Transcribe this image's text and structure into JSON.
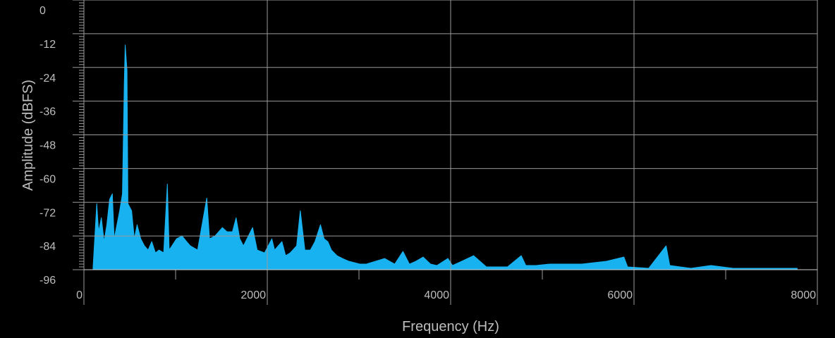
{
  "chart_data": {
    "type": "area",
    "x_label": "Frequency (Hz)",
    "y_label": "Amplitude (dBFS)",
    "xlim": [
      0,
      8000
    ],
    "xticks": [
      0,
      2000,
      4000,
      6000,
      8000
    ],
    "ylim": [
      -96,
      0
    ],
    "yticks": [
      0,
      -12,
      -24,
      -36,
      -48,
      -60,
      -72,
      -84,
      -96
    ],
    "grid": true,
    "x": [
      100,
      140,
      160,
      190,
      220,
      250,
      280,
      310,
      330,
      360,
      390,
      420,
      440,
      450,
      470,
      480,
      520,
      550,
      580,
      620,
      660,
      700,
      740,
      780,
      820,
      870,
      910,
      930,
      1010,
      1070,
      1120,
      1160,
      1240,
      1340,
      1370,
      1430,
      1510,
      1560,
      1620,
      1660,
      1700,
      1740,
      1840,
      1890,
      1970,
      2050,
      2080,
      2160,
      2200,
      2250,
      2320,
      2360,
      2410,
      2470,
      2520,
      2580,
      2620,
      2660,
      2700,
      2760,
      2820,
      2890,
      3010,
      3080,
      3280,
      3390,
      3480,
      3550,
      3620,
      3700,
      3780,
      3850,
      3970,
      4020,
      4120,
      4250,
      4390,
      4620,
      4770,
      4820,
      4930,
      5080,
      5240,
      5430,
      5700,
      5890,
      5930,
      6160,
      6350,
      6390,
      6620,
      6840,
      7080,
      7780
    ],
    "series": [
      {
        "color": "#19b2f0",
        "values": [
          -95,
          -72.5,
          -82.5,
          -77.5,
          -86,
          -80,
          -71,
          -69,
          -85,
          -80,
          -75,
          -69,
          -30,
          -16,
          -25,
          -72.5,
          -75,
          -85,
          -80,
          -85,
          -87.5,
          -89,
          -86,
          -90,
          -89,
          -90,
          -65.5,
          -89,
          -85,
          -84,
          -86,
          -87.5,
          -89,
          -70.5,
          -85,
          -84,
          -81,
          -82.5,
          -82.5,
          -77.5,
          -85,
          -87.5,
          -81,
          -89,
          -90,
          -85,
          -89,
          -86,
          -91,
          -90,
          -87.5,
          -75,
          -89,
          -89,
          -86,
          -80,
          -85,
          -86,
          -89,
          -91,
          -92,
          -93,
          -94,
          -94,
          -92,
          -94,
          -89.5,
          -94,
          -93,
          -91.5,
          -94,
          -94.5,
          -92,
          -94.5,
          -93,
          -91,
          -95,
          -95,
          -91,
          -94.5,
          -94.5,
          -94,
          -94,
          -94,
          -93,
          -91.5,
          -95,
          -95.5,
          -87.5,
          -94.5,
          -95.5,
          -94.5,
          -95.5,
          -95.5
        ]
      }
    ]
  }
}
